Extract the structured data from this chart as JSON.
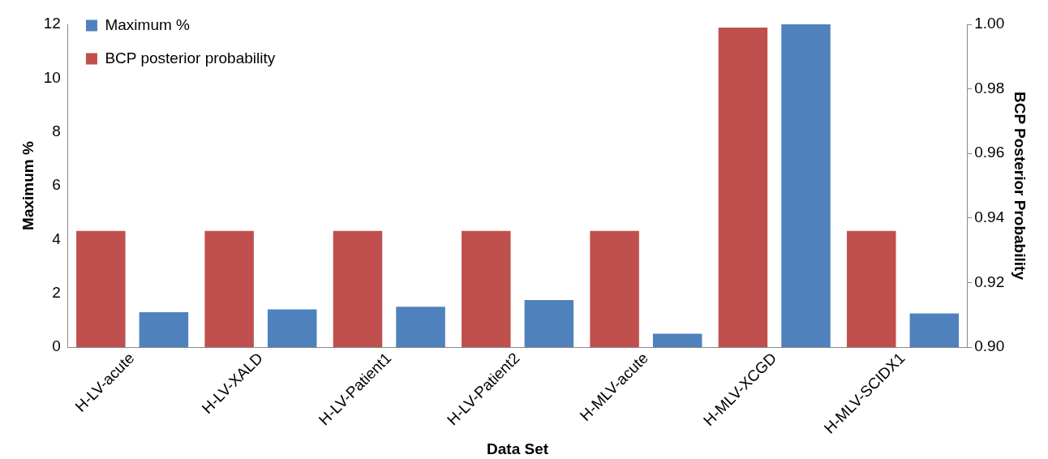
{
  "chart_data": {
    "type": "bar",
    "xlabel": "Data Set",
    "ylabel": "Maximum %",
    "y2label": "BCP Posterior Probability",
    "categories": [
      "H-LV-acute",
      "H-LV-XALD",
      "H-LV-Patient1",
      "H-LV-Patient2",
      "H-MLV-acute",
      "H-MLV-XCGD",
      "H-MLV-SCIDX1"
    ],
    "series": [
      {
        "name": "BCP posterior probability",
        "color": "#c0504d",
        "axis": "y2",
        "values": [
          0.936,
          0.936,
          0.936,
          0.936,
          0.936,
          0.999,
          0.936
        ]
      },
      {
        "name": "Maximum %",
        "color": "#4f81bd",
        "values": [
          1.3,
          1.4,
          1.5,
          1.75,
          0.5,
          12,
          1.25
        ]
      }
    ],
    "ylim": [
      0,
      12
    ],
    "yticks": [
      0,
      2,
      4,
      6,
      8,
      10,
      12
    ],
    "y2lim": [
      0.9,
      1.0
    ],
    "y2ticks": [
      {
        "value": 0.9,
        "label": "0.90"
      },
      {
        "value": 0.92,
        "label": "0.92"
      },
      {
        "value": 0.94,
        "label": "0.94"
      },
      {
        "value": 0.96,
        "label": "0.96"
      },
      {
        "value": 0.98,
        "label": "0.98"
      },
      {
        "value": 1.0,
        "label": "1.00"
      }
    ],
    "grid": false,
    "legend": "top left"
  }
}
